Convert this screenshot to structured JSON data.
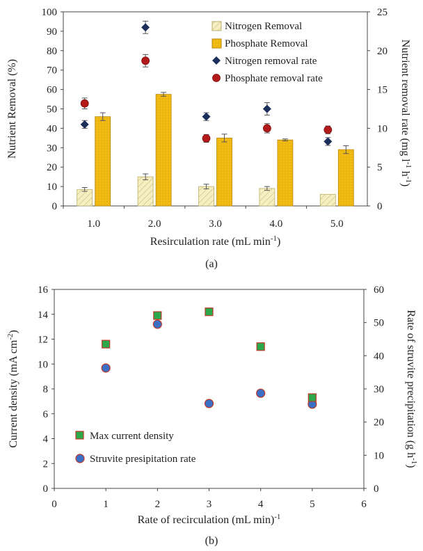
{
  "chart_data": [
    {
      "type": "bar",
      "panel_label": "(a)",
      "xlabel": "Resirculation  rate (mL min",
      "xlabel_sup": "-1",
      "xlabel_end": ")",
      "ylabel": "Nutrient Removal (%)",
      "y2label": "Nutrient  removal rate (mg l",
      "y2label_sup1": "-1",
      "y2label_mid": " h",
      "y2label_sup2": "-1",
      "y2label_end": ")",
      "categories": [
        "1.0",
        "2.0",
        "3.0",
        "4.0",
        "5.0"
      ],
      "ylim": [
        0,
        100
      ],
      "y_ticks": [
        0,
        10,
        20,
        30,
        40,
        50,
        60,
        70,
        80,
        90,
        100
      ],
      "y2lim": [
        0,
        25
      ],
      "y2_ticks": [
        0,
        5,
        10,
        15,
        20,
        25
      ],
      "grid": false,
      "legend_position": "top-right",
      "series": [
        {
          "name": "Nitrogen Removal",
          "kind": "bar",
          "axis": "left",
          "color": "#f5efc2",
          "values": [
            8.5,
            15,
            10,
            9,
            6
          ],
          "errors": [
            1,
            1.5,
            1.2,
            1,
            0
          ]
        },
        {
          "name": "Phosphate Removal",
          "kind": "bar",
          "axis": "left",
          "color": "#f2bb13",
          "values": [
            46,
            57.5,
            35,
            34,
            29
          ],
          "errors": [
            2,
            1,
            2,
            0.5,
            2
          ]
        },
        {
          "name": "Nitrogen removal rate",
          "kind": "marker",
          "marker": "diamond",
          "axis": "right",
          "color": "#1b2f5a",
          "values": [
            10.5,
            23,
            11.5,
            12.5,
            8.3
          ],
          "errors": [
            0.5,
            0.8,
            0.5,
            0.8,
            0.5
          ]
        },
        {
          "name": "Phosphate removal rate",
          "kind": "marker",
          "marker": "circle",
          "axis": "right",
          "color": "#b31b1b",
          "values": [
            13.2,
            18.7,
            8.7,
            10,
            9.8
          ],
          "errors": [
            0.7,
            0.8,
            0.5,
            0.6,
            0.5
          ]
        }
      ]
    },
    {
      "type": "scatter",
      "panel_label": "(b)",
      "xlabel": "Rate of recirculation (mL min)",
      "xlabel_sup": "-1",
      "ylabel": "Current density (mA cm",
      "ylabel_sup": "-2",
      "ylabel_end": ")",
      "y2label": "Rate of struvite precipitation (g h",
      "y2label_sup": "-1",
      "y2label_end": ")",
      "xlim": [
        0,
        6
      ],
      "x_ticks": [
        0,
        1,
        2,
        3,
        4,
        5,
        6
      ],
      "ylim": [
        0,
        16
      ],
      "y_ticks": [
        0,
        2,
        4,
        6,
        8,
        10,
        12,
        14,
        16
      ],
      "y2lim": [
        0,
        60
      ],
      "y2_ticks": [
        0,
        10,
        20,
        30,
        40,
        50,
        60
      ],
      "grid": false,
      "legend_position": "bottom-left",
      "series": [
        {
          "name": "Max current density",
          "marker": "square",
          "axis": "left",
          "color": "#2aa84a",
          "edge": "#c0392b",
          "x": [
            1,
            2,
            3,
            4,
            5
          ],
          "values": [
            11.6,
            13.9,
            14.2,
            11.4,
            7.3
          ]
        },
        {
          "name": "Struvite presipitation rate",
          "marker": "circle",
          "axis": "right",
          "color": "#3a6fc4",
          "edge": "#c0392b",
          "x": [
            1,
            2,
            3,
            4,
            5
          ],
          "values": [
            36.3,
            49.5,
            25.6,
            28.7,
            25.4
          ]
        }
      ]
    }
  ]
}
